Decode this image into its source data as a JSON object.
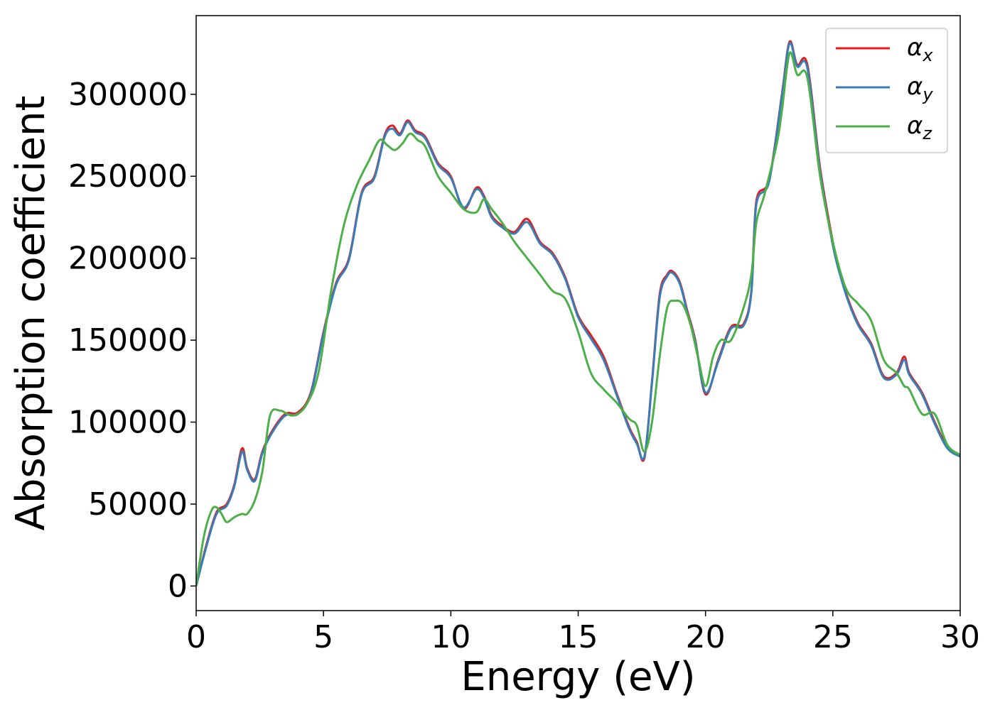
{
  "chart_data": {
    "type": "line",
    "title": "",
    "xlabel": "Energy (eV)",
    "ylabel": "Absorption coefficient",
    "xlim": [
      0,
      30
    ],
    "ylim": [
      -15000,
      348000
    ],
    "xticks": [
      "0",
      "5",
      "10",
      "15",
      "20",
      "25",
      "30"
    ],
    "yticks": [
      "0",
      "50000",
      "100000",
      "150000",
      "200000",
      "250000",
      "300000"
    ],
    "grid": false,
    "legend_position": "top-right",
    "legend": [
      {
        "symbol": "α",
        "sub": "x"
      },
      {
        "symbol": "α",
        "sub": "y"
      },
      {
        "symbol": "α",
        "sub": "z"
      }
    ],
    "series": [
      {
        "name": "αx",
        "color": "#e41a1c",
        "x": [
          0,
          0.4,
          0.8,
          1.2,
          1.5,
          1.8,
          2.0,
          2.3,
          2.6,
          3.0,
          3.5,
          4.0,
          4.5,
          5.0,
          5.5,
          6.0,
          6.5,
          7.0,
          7.4,
          7.7,
          8.0,
          8.3,
          8.6,
          9.0,
          9.5,
          10.0,
          10.5,
          11.0,
          11.3,
          11.6,
          12.0,
          12.5,
          13.0,
          13.5,
          14.0,
          14.5,
          15.0,
          15.5,
          16.0,
          16.5,
          17.0,
          17.3,
          17.6,
          17.9,
          18.2,
          18.5,
          18.7,
          19.0,
          19.3,
          19.6,
          20.0,
          20.5,
          21.0,
          21.5,
          21.8,
          22.0,
          22.5,
          23.0,
          23.3,
          23.6,
          24.0,
          24.5,
          25.0,
          25.3,
          25.6,
          26.0,
          26.5,
          27.0,
          27.5,
          27.8,
          28.0,
          28.5,
          29.0,
          29.5,
          30.0
        ],
        "values": [
          0,
          25000,
          45000,
          50000,
          62000,
          84000,
          72000,
          65000,
          82000,
          95000,
          105000,
          106000,
          118000,
          155000,
          185000,
          200000,
          240000,
          250000,
          275000,
          281000,
          276000,
          284000,
          278000,
          274000,
          258000,
          250000,
          230000,
          243000,
          238000,
          226000,
          220000,
          216000,
          224000,
          210000,
          203000,
          188000,
          165000,
          153000,
          140000,
          118000,
          97000,
          88000,
          78000,
          125000,
          178000,
          190000,
          192000,
          185000,
          167000,
          150000,
          117000,
          138000,
          158000,
          160000,
          180000,
          235000,
          248000,
          300000,
          332000,
          318000,
          318000,
          255000,
          210000,
          190000,
          175000,
          160000,
          148000,
          128000,
          130000,
          140000,
          130000,
          118000,
          100000,
          85000,
          80000
        ]
      },
      {
        "name": "αy",
        "color": "#377eb8",
        "x": [
          0,
          0.4,
          0.8,
          1.2,
          1.5,
          1.8,
          2.0,
          2.3,
          2.6,
          3.0,
          3.5,
          4.0,
          4.5,
          5.0,
          5.5,
          6.0,
          6.5,
          7.0,
          7.4,
          7.7,
          8.0,
          8.3,
          8.6,
          9.0,
          9.5,
          10.0,
          10.5,
          11.0,
          11.3,
          11.6,
          12.0,
          12.5,
          13.0,
          13.5,
          14.0,
          14.5,
          15.0,
          15.5,
          16.0,
          16.5,
          17.0,
          17.3,
          17.6,
          17.9,
          18.2,
          18.5,
          18.7,
          19.0,
          19.3,
          19.6,
          20.0,
          20.5,
          21.0,
          21.5,
          21.8,
          22.0,
          22.5,
          23.0,
          23.3,
          23.6,
          24.0,
          24.5,
          25.0,
          25.3,
          25.6,
          26.0,
          26.5,
          27.0,
          27.5,
          27.8,
          28.0,
          28.5,
          29.0,
          29.5,
          30.0
        ],
        "values": [
          0,
          24000,
          44000,
          49000,
          61000,
          82000,
          71000,
          64000,
          81000,
          94000,
          104000,
          105000,
          117000,
          154000,
          184000,
          199000,
          239000,
          249000,
          274000,
          279000,
          275000,
          283000,
          277000,
          273000,
          257000,
          249000,
          231000,
          242000,
          237000,
          225000,
          219000,
          215000,
          222000,
          209000,
          202000,
          187000,
          164000,
          151000,
          138000,
          117000,
          96000,
          87000,
          79000,
          124000,
          176000,
          189000,
          191000,
          184000,
          166000,
          149000,
          118000,
          137000,
          157000,
          159000,
          179000,
          233000,
          247000,
          299000,
          331000,
          317000,
          316000,
          253000,
          208000,
          189000,
          174000,
          159000,
          147000,
          127000,
          129000,
          138000,
          129000,
          117000,
          99000,
          84000,
          79000
        ]
      },
      {
        "name": "αz",
        "color": "#4daf4a",
        "x": [
          0,
          0.3,
          0.6,
          0.8,
          1.0,
          1.2,
          1.5,
          1.8,
          2.0,
          2.3,
          2.6,
          2.9,
          3.3,
          3.8,
          4.3,
          4.8,
          5.3,
          5.8,
          6.3,
          6.8,
          7.2,
          7.5,
          7.8,
          8.1,
          8.4,
          8.7,
          9.0,
          9.5,
          10.0,
          10.5,
          11.0,
          11.3,
          11.6,
          12.0,
          12.5,
          13.0,
          13.5,
          14.0,
          14.5,
          15.0,
          15.5,
          16.0,
          16.5,
          17.0,
          17.3,
          17.6,
          17.9,
          18.2,
          18.5,
          18.8,
          19.1,
          19.4,
          19.7,
          20.0,
          20.3,
          20.6,
          21.0,
          21.5,
          21.8,
          22.0,
          22.3,
          22.8,
          23.0,
          23.3,
          23.6,
          24.0,
          24.5,
          25.0,
          25.5,
          26.0,
          26.5,
          27.0,
          27.5,
          27.8,
          28.0,
          28.5,
          29.0,
          29.5,
          30.0
        ],
        "values": [
          0,
          30000,
          46000,
          48000,
          44000,
          39000,
          42000,
          44000,
          44000,
          52000,
          70000,
          104000,
          107000,
          104000,
          110000,
          130000,
          180000,
          220000,
          244000,
          260000,
          272000,
          269000,
          266000,
          270000,
          276000,
          272000,
          268000,
          250000,
          240000,
          230000,
          228000,
          236000,
          230000,
          222000,
          210000,
          200000,
          190000,
          180000,
          175000,
          155000,
          130000,
          120000,
          112000,
          102000,
          98000,
          82000,
          100000,
          140000,
          170000,
          174000,
          172000,
          160000,
          140000,
          122000,
          140000,
          150000,
          150000,
          170000,
          190000,
          222000,
          238000,
          270000,
          290000,
          325000,
          312000,
          310000,
          250000,
          210000,
          182000,
          172000,
          162000,
          138000,
          130000,
          122000,
          120000,
          105000,
          105000,
          86000,
          80000
        ]
      }
    ]
  }
}
